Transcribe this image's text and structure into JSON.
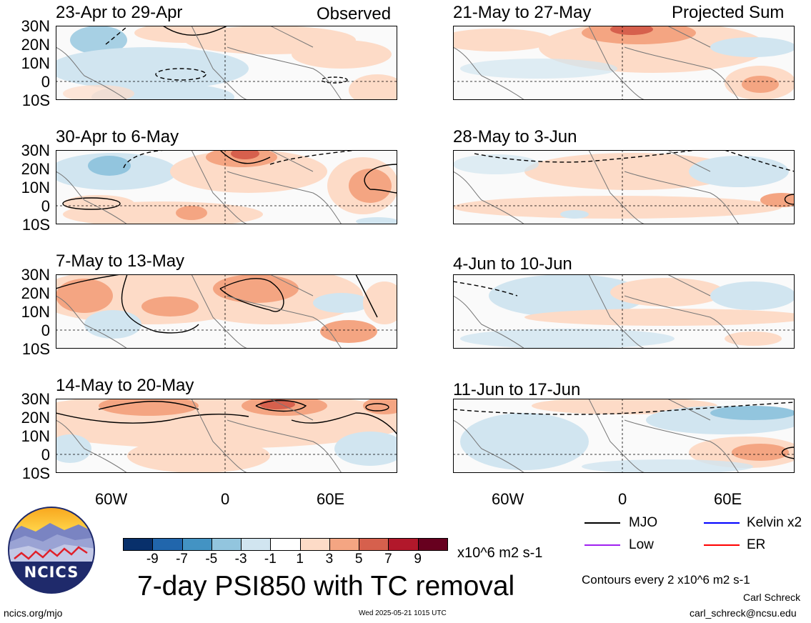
{
  "header": {
    "left_label": "Observed",
    "right_label": "Projected Sum"
  },
  "panels_left": [
    {
      "title": "23-Apr to 29-Apr"
    },
    {
      "title": "30-Apr to 6-May"
    },
    {
      "title": "7-May to 13-May"
    },
    {
      "title": "14-May to 20-May"
    }
  ],
  "panels_right": [
    {
      "title": "21-May to 27-May"
    },
    {
      "title": "28-May to 3-Jun"
    },
    {
      "title": "4-Jun to 10-Jun"
    },
    {
      "title": "11-Jun to 17-Jun"
    }
  ],
  "lat_labels": [
    "30N",
    "20N",
    "10N",
    "0",
    "10S"
  ],
  "lon_labels": [
    "60W",
    "0",
    "60E"
  ],
  "colorbar": {
    "colors": [
      "#08306b",
      "#2166ac",
      "#4393c3",
      "#92c5de",
      "#d1e5f0",
      "#ffffff",
      "#fddbc7",
      "#f4a582",
      "#d6604d",
      "#b2182b",
      "#67001f"
    ],
    "tick_labels": [
      "-9",
      "-7",
      "-5",
      "-3",
      "-1",
      "1",
      "3",
      "5",
      "7",
      "9"
    ],
    "units": "x10^6 m2 s-1"
  },
  "legend": [
    {
      "label": "MJO",
      "color": "#000000"
    },
    {
      "label": "Kelvin x2",
      "color": "#0000ff"
    },
    {
      "label": "Low",
      "color": "#a020f0"
    },
    {
      "label": "ER",
      "color": "#ff0000"
    }
  ],
  "footer": {
    "logo_text": "NCICS",
    "main_title": "7-day PSI850 with TC removal",
    "contour_note": "Contours every 2 x10^6 m2 s-1",
    "author": "Carl Schreck",
    "email": "carl_schreck@ncsu.edu",
    "site": "ncics.org/mjo",
    "timestamp": "Wed 2025-05-21 1015 UTC"
  }
}
